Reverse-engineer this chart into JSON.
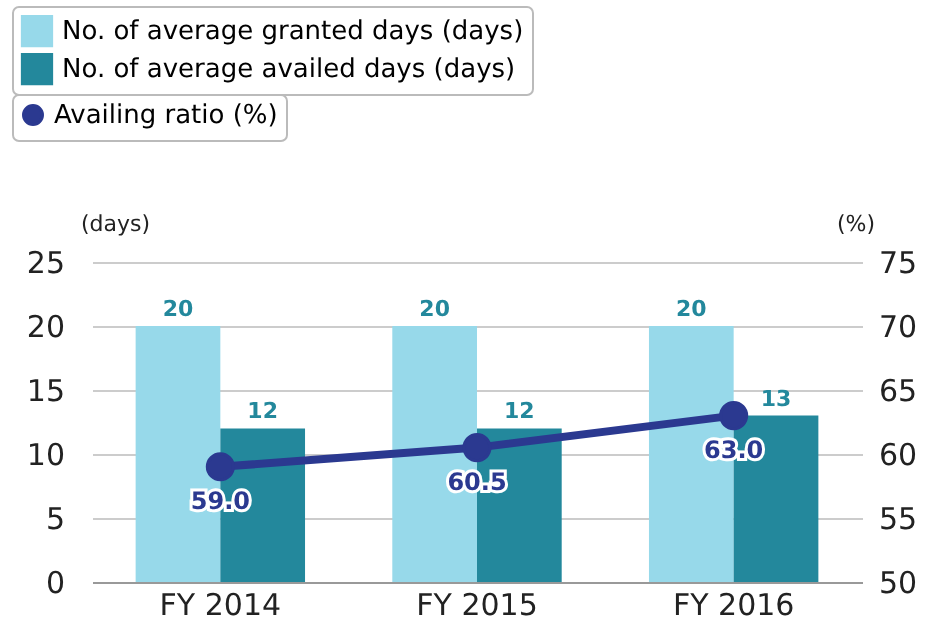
{
  "chart_data": {
    "type": "bar",
    "categories": [
      "FY 2014",
      "FY 2015",
      "FY 2016"
    ],
    "series": [
      {
        "name": "No. of average granted days (days)",
        "color": "#97d9ea",
        "values": [
          20,
          20,
          20
        ]
      },
      {
        "name": "No. of average availed days (days)",
        "color": "#23889c",
        "values": [
          12,
          12,
          13
        ]
      },
      {
        "name": "Availing ratio (%)",
        "type": "line",
        "axis": "y2",
        "color": "#2b3990",
        "values": [
          59.0,
          60.5,
          63.0
        ],
        "marker": "circle",
        "value_labels": [
          "59.0",
          "60.5",
          "63.0"
        ]
      }
    ],
    "ylabel": "(days)",
    "y2label": "(%)",
    "ylim": [
      0,
      25
    ],
    "yticks": [
      0,
      5,
      10,
      15,
      20,
      25
    ],
    "y2lim": [
      50,
      75
    ],
    "y2ticks": [
      50,
      55,
      60,
      65,
      70,
      75
    ],
    "data_labels": true,
    "grid": "y",
    "legend": "top left"
  }
}
